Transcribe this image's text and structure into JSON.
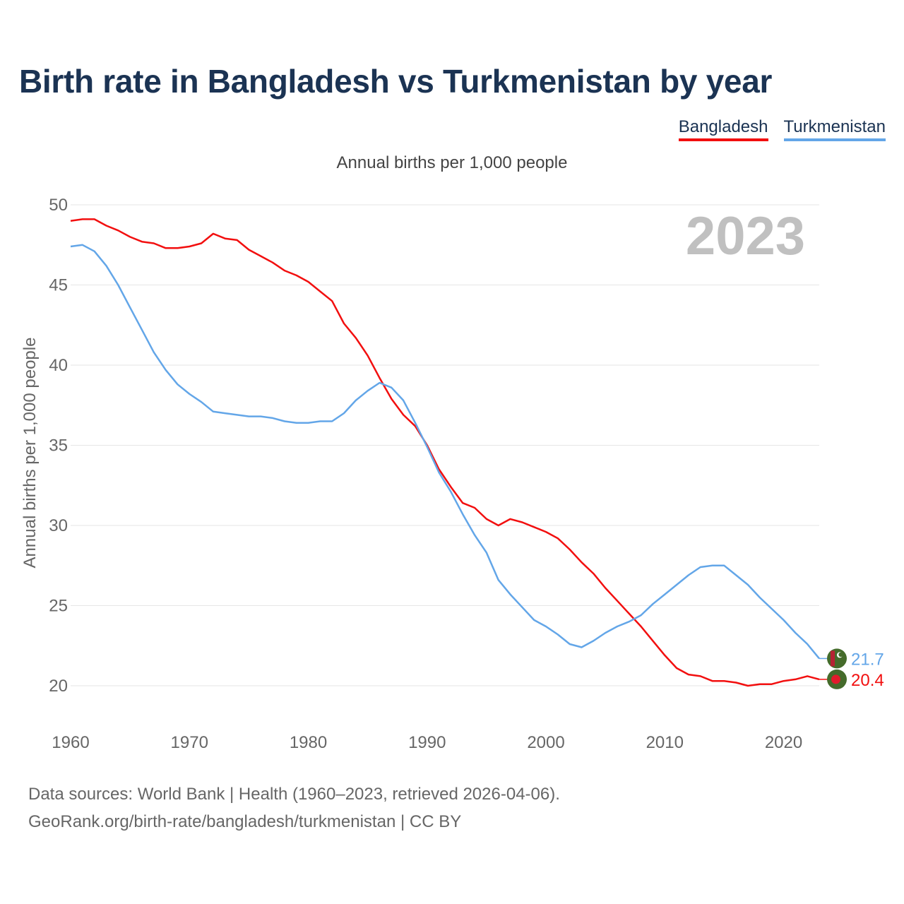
{
  "title": "Birth rate in Bangladesh vs Turkmenistan by year",
  "subtitle": "Annual births per 1,000 people",
  "legend": [
    {
      "label": "Bangladesh",
      "color": "#f20f0f"
    },
    {
      "label": "Turkmenistan",
      "color": "#63a6e8"
    }
  ],
  "year_display": "2023",
  "footer": {
    "line1": "Data sources: World Bank | Health (1960–2023, retrieved 2026-04-06).",
    "line2": "GeoRank.org/birth-rate/bangladesh/turkmenistan | CC BY"
  },
  "chart_data": {
    "type": "line",
    "title": "Birth rate in Bangladesh vs Turkmenistan by year",
    "xlabel": "",
    "ylabel": "Annual births per 1,000 people",
    "xlim": [
      1960,
      2023
    ],
    "ylim": [
      20,
      50
    ],
    "xticks": [
      1960,
      1970,
      1980,
      1990,
      2000,
      2010,
      2020
    ],
    "yticks": [
      20,
      25,
      30,
      35,
      40,
      45,
      50
    ],
    "grid": true,
    "legend_position": "top-right",
    "x": [
      1960,
      1961,
      1962,
      1963,
      1964,
      1965,
      1966,
      1967,
      1968,
      1969,
      1970,
      1971,
      1972,
      1973,
      1974,
      1975,
      1976,
      1977,
      1978,
      1979,
      1980,
      1981,
      1982,
      1983,
      1984,
      1985,
      1986,
      1987,
      1988,
      1989,
      1990,
      1991,
      1992,
      1993,
      1994,
      1995,
      1996,
      1997,
      1998,
      1999,
      2000,
      2001,
      2002,
      2003,
      2004,
      2005,
      2006,
      2007,
      2008,
      2009,
      2010,
      2011,
      2012,
      2013,
      2014,
      2015,
      2016,
      2017,
      2018,
      2019,
      2020,
      2021,
      2022,
      2023
    ],
    "series": [
      {
        "name": "Bangladesh",
        "color": "#f20f0f",
        "end_label": "20.4",
        "values": [
          49.0,
          49.1,
          49.1,
          48.7,
          48.4,
          48.0,
          47.7,
          47.6,
          47.3,
          47.3,
          47.4,
          47.6,
          48.2,
          47.9,
          47.8,
          47.2,
          46.8,
          46.4,
          45.9,
          45.6,
          45.2,
          44.6,
          44.0,
          42.6,
          41.7,
          40.6,
          39.2,
          37.9,
          36.9,
          36.2,
          35.0,
          33.5,
          32.4,
          31.4,
          31.1,
          30.4,
          30.0,
          30.4,
          30.2,
          29.9,
          29.6,
          29.2,
          28.5,
          27.7,
          27.0,
          26.1,
          25.3,
          24.5,
          23.7,
          22.8,
          21.9,
          21.1,
          20.7,
          20.6,
          20.3,
          20.3,
          20.2,
          20.0,
          20.1,
          20.1,
          20.3,
          20.4,
          20.6,
          20.4
        ]
      },
      {
        "name": "Turkmenistan",
        "color": "#63a6e8",
        "end_label": "21.7",
        "values": [
          47.4,
          47.5,
          47.1,
          46.2,
          45.0,
          43.6,
          42.2,
          40.8,
          39.7,
          38.8,
          38.2,
          37.7,
          37.1,
          37.0,
          36.9,
          36.8,
          36.8,
          36.7,
          36.5,
          36.4,
          36.4,
          36.5,
          36.5,
          37.0,
          37.8,
          38.4,
          38.9,
          38.6,
          37.8,
          36.4,
          34.9,
          33.3,
          32.1,
          30.7,
          29.4,
          28.3,
          26.6,
          25.7,
          24.9,
          24.1,
          23.7,
          23.2,
          22.6,
          22.4,
          22.8,
          23.3,
          23.7,
          24.0,
          24.4,
          25.1,
          25.7,
          26.3,
          26.9,
          27.4,
          27.5,
          27.5,
          26.9,
          26.3,
          25.5,
          24.8,
          24.1,
          23.3,
          22.6,
          21.7
        ]
      }
    ]
  }
}
